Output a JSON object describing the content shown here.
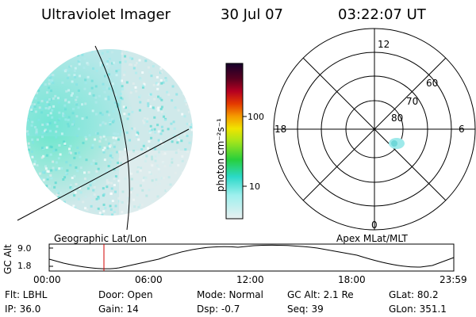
{
  "header": {
    "title": "Ultraviolet Imager",
    "date": "30 Jul 07",
    "time": "03:22:07 UT"
  },
  "colorbar": {
    "unit_label": "photon cm⁻²s⁻¹",
    "ticks": [
      "100",
      "10"
    ]
  },
  "polar_plot": {
    "mlt_labels": [
      "12",
      "6",
      "0",
      "18"
    ],
    "lat_labels": [
      "60",
      "70",
      "80"
    ]
  },
  "labels": {
    "left_map": "Geographic Lat/Lon",
    "right_map": "Apex MLat/MLT"
  },
  "timeline": {
    "ylabel": "GC Alt",
    "y_ticks": [
      "9.0",
      "1.8"
    ],
    "x_ticks": [
      "00:00",
      "06:00",
      "12:00",
      "18:00",
      "23:59"
    ]
  },
  "info": {
    "flt": "Flt: LBHL",
    "door": "Door: Open",
    "mode": "Mode: Normal",
    "gc_alt": "GC Alt: 2.1 Re",
    "glat": "GLat:  80.2",
    "ip": "IP: 36.0",
    "gain": "Gain: 14",
    "dsp": "Dsp:   -0.7",
    "seq": "Seq: 39",
    "glon": "GLon: 351.1"
  }
}
